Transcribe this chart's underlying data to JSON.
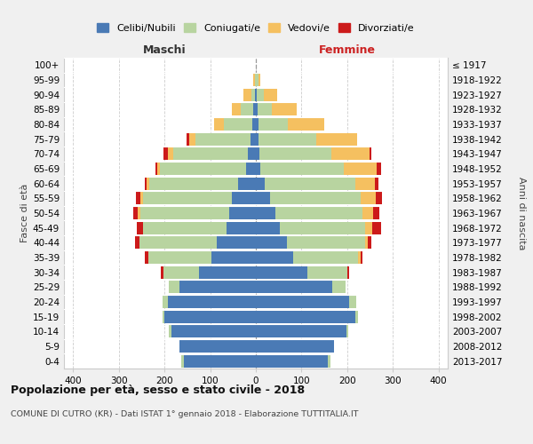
{
  "age_groups": [
    "0-4",
    "5-9",
    "10-14",
    "15-19",
    "20-24",
    "25-29",
    "30-34",
    "35-39",
    "40-44",
    "45-49",
    "50-54",
    "55-59",
    "60-64",
    "65-69",
    "70-74",
    "75-79",
    "80-84",
    "85-89",
    "90-94",
    "95-99",
    "100+"
  ],
  "birth_years": [
    "2013-2017",
    "2008-2012",
    "2003-2007",
    "1998-2002",
    "1993-1997",
    "1988-1992",
    "1983-1987",
    "1978-1982",
    "1973-1977",
    "1968-1972",
    "1963-1967",
    "1958-1962",
    "1953-1957",
    "1948-1952",
    "1943-1947",
    "1938-1942",
    "1933-1937",
    "1928-1932",
    "1923-1927",
    "1918-1922",
    "≤ 1917"
  ],
  "colors": {
    "celibe": "#4a7ab5",
    "coniugato": "#b8d4a0",
    "vedovo": "#f5c060",
    "divorziato": "#cc1a1a"
  },
  "maschi": {
    "celibe": [
      158,
      168,
      185,
      200,
      192,
      168,
      125,
      98,
      85,
      65,
      58,
      52,
      38,
      22,
      18,
      12,
      8,
      5,
      2,
      0,
      0
    ],
    "coniugato": [
      5,
      0,
      5,
      5,
      12,
      22,
      78,
      138,
      170,
      182,
      195,
      195,
      195,
      188,
      162,
      120,
      62,
      28,
      8,
      2,
      0
    ],
    "vedovo": [
      0,
      0,
      0,
      0,
      0,
      0,
      0,
      0,
      0,
      0,
      5,
      5,
      6,
      5,
      12,
      14,
      22,
      20,
      18,
      3,
      0
    ],
    "divorziato": [
      0,
      0,
      0,
      0,
      0,
      0,
      5,
      8,
      10,
      14,
      10,
      10,
      5,
      5,
      10,
      5,
      0,
      0,
      0,
      0,
      0
    ]
  },
  "femmine": {
    "nubile": [
      158,
      172,
      198,
      218,
      205,
      168,
      112,
      82,
      68,
      52,
      42,
      32,
      20,
      10,
      8,
      5,
      5,
      3,
      2,
      0,
      0
    ],
    "coniugata": [
      5,
      0,
      5,
      5,
      14,
      28,
      88,
      142,
      172,
      188,
      192,
      198,
      198,
      182,
      158,
      128,
      65,
      32,
      15,
      5,
      0
    ],
    "vedova": [
      0,
      0,
      0,
      0,
      0,
      0,
      0,
      5,
      5,
      15,
      22,
      32,
      42,
      72,
      82,
      88,
      80,
      55,
      30,
      5,
      0
    ],
    "divorziata": [
      0,
      0,
      0,
      0,
      0,
      0,
      5,
      5,
      8,
      20,
      15,
      15,
      8,
      10,
      5,
      0,
      0,
      0,
      0,
      0,
      0
    ]
  },
  "xlim": 420,
  "bg_color": "#f0f0f0",
  "plot_bg": "#ffffff",
  "grid_color": "#cccccc",
  "title_bold": "Popolazione per età, sesso e stato civile - 2018",
  "subtitle": "COMUNE DI CUTRO (KR) - Dati ISTAT 1° gennaio 2018 - Elaborazione TUTTITALIA.IT",
  "xlabel_left": "Maschi",
  "xlabel_right": "Femmine",
  "ylabel_left": "Fasce di età",
  "ylabel_right": "Anni di nascita",
  "legend_labels": [
    "Celibi/Nubili",
    "Coniugati/e",
    "Vedovi/e",
    "Divorziati/e"
  ]
}
